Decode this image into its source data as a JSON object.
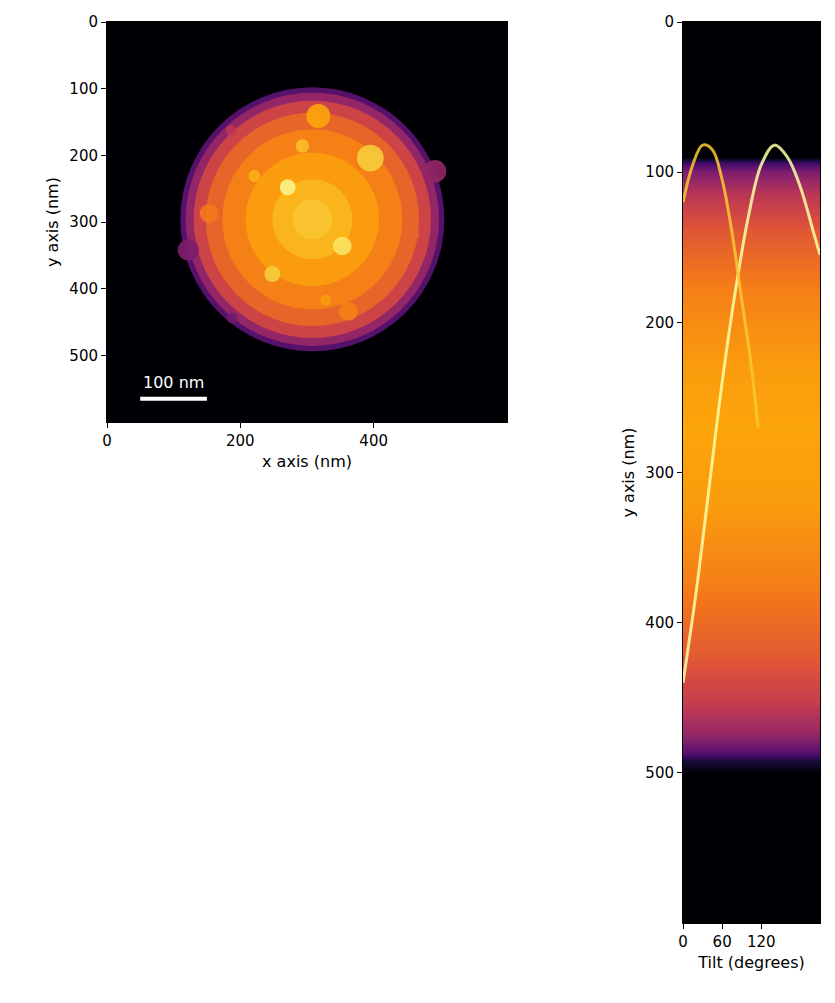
{
  "chart_data": [
    {
      "type": "image",
      "x_label": "x axis (nm)",
      "y_label": "y axis (nm)",
      "xlim": [
        0,
        600
      ],
      "ylim": [
        600,
        0
      ],
      "xticks": [
        0,
        200,
        400
      ],
      "yticks": [
        0,
        100,
        200,
        300,
        400,
        500
      ],
      "zlim": [
        0,
        1
      ],
      "scale_bar": {
        "label": "100 nm",
        "length": 100
      },
      "disk": {
        "x": 308,
        "y": 296,
        "rings": [
          {
            "r": 198,
            "value": 0.25
          },
          {
            "r": 190,
            "value": 0.4
          },
          {
            "r": 178,
            "value": 0.55
          },
          {
            "r": 160,
            "value": 0.65
          },
          {
            "r": 135,
            "value": 0.72
          },
          {
            "r": 100,
            "value": 0.78
          },
          {
            "r": 60,
            "value": 0.83
          },
          {
            "r": 30,
            "value": 0.86
          }
        ]
      },
      "particles": [
        {
          "x": 317,
          "y": 141,
          "r": 18,
          "value": 0.8
        },
        {
          "x": 395,
          "y": 204,
          "r": 20,
          "value": 0.88
        },
        {
          "x": 186,
          "y": 162,
          "r": 8,
          "value": 0.5
        },
        {
          "x": 293,
          "y": 186,
          "r": 10,
          "value": 0.85
        },
        {
          "x": 221,
          "y": 231,
          "r": 9,
          "value": 0.82
        },
        {
          "x": 271,
          "y": 248,
          "r": 12,
          "value": 0.97
        },
        {
          "x": 153,
          "y": 287,
          "r": 14,
          "value": 0.7
        },
        {
          "x": 492,
          "y": 224,
          "r": 17,
          "value": 0.4
        },
        {
          "x": 459,
          "y": 320,
          "r": 9,
          "value": 0.65
        },
        {
          "x": 122,
          "y": 342,
          "r": 16,
          "value": 0.35
        },
        {
          "x": 353,
          "y": 336,
          "r": 14,
          "value": 0.93
        },
        {
          "x": 248,
          "y": 378,
          "r": 12,
          "value": 0.88
        },
        {
          "x": 328,
          "y": 417,
          "r": 8,
          "value": 0.78
        },
        {
          "x": 362,
          "y": 434,
          "r": 14,
          "value": 0.72
        },
        {
          "x": 188,
          "y": 444,
          "r": 8,
          "value": 0.32
        }
      ]
    },
    {
      "type": "heatmap",
      "x_label": "Tilt (degrees)",
      "y_label": "y axis (nm)",
      "xlim": [
        0,
        210
      ],
      "ylim": [
        600,
        0
      ],
      "xticks": [
        0,
        60,
        120
      ],
      "yticks": [
        0,
        100,
        200,
        300,
        400,
        500
      ],
      "zlim": [
        0,
        1
      ],
      "profile": {
        "y": [
          0,
          90,
          94,
          100,
          115,
          140,
          180,
          230,
          270,
          320,
          370,
          420,
          455,
          475,
          487,
          492,
          500,
          600
        ],
        "values": [
          0,
          0,
          0.2,
          0.35,
          0.5,
          0.62,
          0.72,
          0.78,
          0.8,
          0.78,
          0.72,
          0.63,
          0.52,
          0.4,
          0.25,
          0.1,
          0,
          0
        ]
      },
      "series": [
        {
          "color": "#fcffa4",
          "x": [
            0,
            20,
            40,
            60,
            80,
            100,
            120,
            140,
            160,
            180,
            200,
            210
          ],
          "values": [
            440,
            380,
            310,
            240,
            180,
            130,
            95,
            82,
            90,
            110,
            140,
            155
          ]
        },
        {
          "color": "#f9c932",
          "x": [
            0,
            15,
            30,
            45,
            60,
            75,
            90,
            105,
            115
          ],
          "values": [
            120,
            95,
            82,
            85,
            105,
            140,
            185,
            230,
            270
          ]
        }
      ]
    }
  ]
}
